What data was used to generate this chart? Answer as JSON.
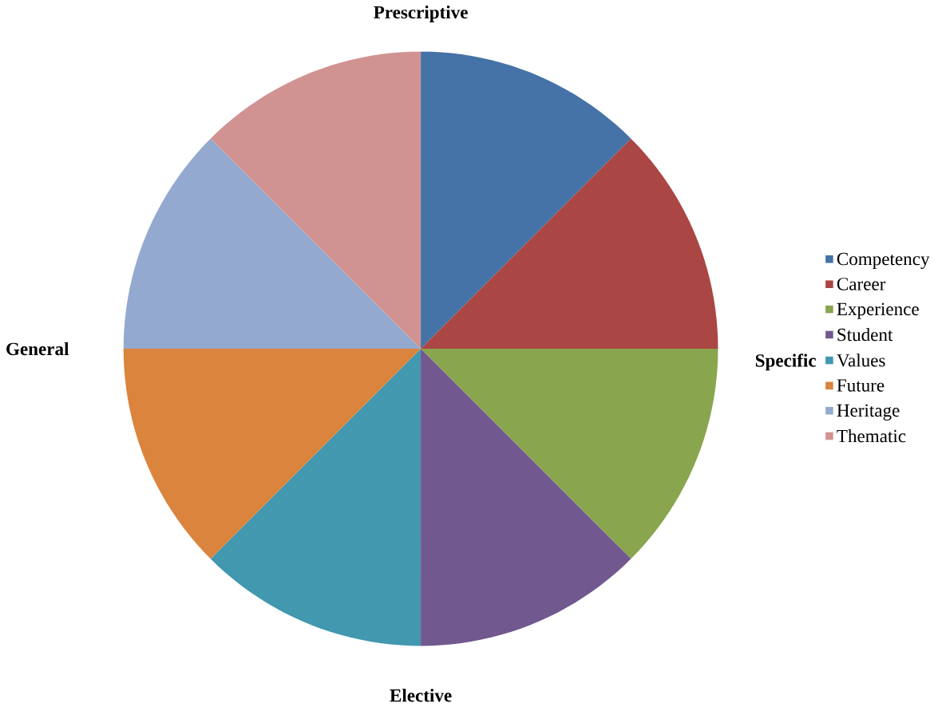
{
  "chart_data": {
    "type": "pie",
    "categories": [
      "Competency",
      "Career",
      "Experience",
      "Student",
      "Values",
      "Future",
      "Heritage",
      "Thematic"
    ],
    "values": [
      12.5,
      12.5,
      12.5,
      12.5,
      12.5,
      12.5,
      12.5,
      12.5
    ],
    "colors": [
      "#4572a7",
      "#aa4643",
      "#89a54e",
      "#71588f",
      "#4198af",
      "#db843d",
      "#93a9cf",
      "#d19392"
    ],
    "annotations": [
      "Prescriptive",
      "Specific",
      "Elective",
      "General"
    ],
    "legend": "right"
  }
}
